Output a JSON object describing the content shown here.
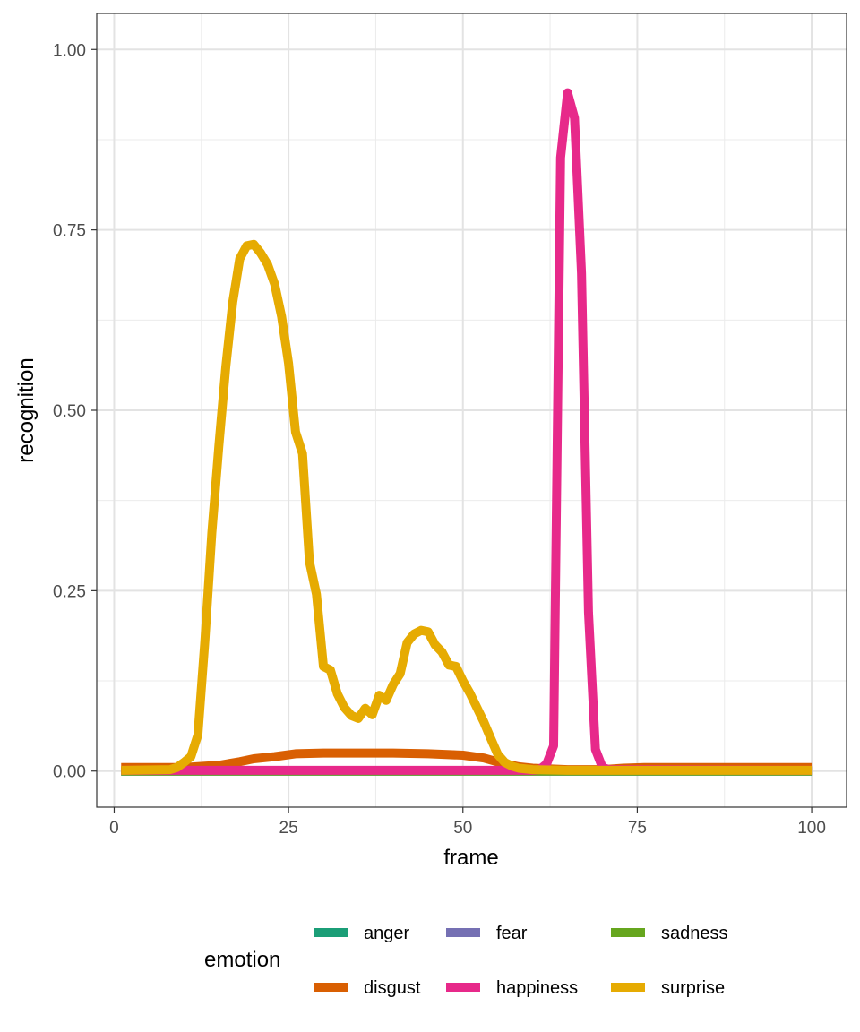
{
  "chart_data": {
    "type": "line",
    "title": "",
    "xlabel": "frame",
    "ylabel": "recognition",
    "xlim": [
      -2.5,
      105
    ],
    "ylim": [
      -0.05,
      1.05
    ],
    "x_ticks": [
      0,
      25,
      50,
      75,
      100
    ],
    "x_tick_labels": [
      "0",
      "25",
      "50",
      "75",
      "100"
    ],
    "y_ticks": [
      0,
      0.25,
      0.5,
      0.75,
      1.0
    ],
    "y_tick_labels": [
      "0.00",
      "0.25",
      "0.50",
      "0.75",
      "1.00"
    ],
    "grid": true,
    "legend": {
      "title": "emotion",
      "placement": "bottom"
    },
    "series": [
      {
        "name": "anger",
        "color": "#1B9E77",
        "points": [
          [
            1,
            0.0
          ],
          [
            100,
            0.0
          ]
        ]
      },
      {
        "name": "fear",
        "color": "#7570B3",
        "points": [
          [
            1,
            0.0
          ],
          [
            100,
            0.0
          ]
        ]
      },
      {
        "name": "sadness",
        "color": "#66A61E",
        "points": [
          [
            1,
            0.0
          ],
          [
            100,
            0.0
          ]
        ]
      },
      {
        "name": "disgust",
        "color": "#D95F02",
        "points": [
          [
            1,
            0.005
          ],
          [
            5,
            0.005
          ],
          [
            10,
            0.005
          ],
          [
            15,
            0.008
          ],
          [
            18,
            0.013
          ],
          [
            20,
            0.017
          ],
          [
            23,
            0.02
          ],
          [
            26,
            0.024
          ],
          [
            30,
            0.025
          ],
          [
            35,
            0.025
          ],
          [
            40,
            0.025
          ],
          [
            45,
            0.024
          ],
          [
            50,
            0.022
          ],
          [
            53,
            0.018
          ],
          [
            56,
            0.01
          ],
          [
            58,
            0.006
          ],
          [
            60,
            0.004
          ],
          [
            65,
            0.002
          ],
          [
            70,
            0.002
          ],
          [
            73,
            0.004
          ],
          [
            76,
            0.005
          ],
          [
            80,
            0.005
          ],
          [
            100,
            0.005
          ]
        ]
      },
      {
        "name": "happiness",
        "color": "#E7298A",
        "points": [
          [
            1,
            0.001
          ],
          [
            60,
            0.001
          ],
          [
            61,
            0.002
          ],
          [
            62,
            0.01
          ],
          [
            63,
            0.035
          ],
          [
            64,
            0.85
          ],
          [
            65,
            0.94
          ],
          [
            66,
            0.905
          ],
          [
            67,
            0.69
          ],
          [
            68,
            0.22
          ],
          [
            69,
            0.03
          ],
          [
            70,
            0.005
          ],
          [
            71,
            0.002
          ],
          [
            100,
            0.001
          ]
        ]
      },
      {
        "name": "surprise",
        "color": "#E6AB02",
        "points": [
          [
            1,
            0.001
          ],
          [
            8,
            0.002
          ],
          [
            9,
            0.005
          ],
          [
            10,
            0.012
          ],
          [
            11,
            0.02
          ],
          [
            12,
            0.05
          ],
          [
            13,
            0.18
          ],
          [
            14,
            0.33
          ],
          [
            15,
            0.45
          ],
          [
            16,
            0.56
          ],
          [
            17,
            0.65
          ],
          [
            18,
            0.71
          ],
          [
            19,
            0.728
          ],
          [
            20,
            0.73
          ],
          [
            21,
            0.718
          ],
          [
            22,
            0.702
          ],
          [
            23,
            0.675
          ],
          [
            24,
            0.63
          ],
          [
            25,
            0.565
          ],
          [
            26,
            0.47
          ],
          [
            27,
            0.44
          ],
          [
            28,
            0.29
          ],
          [
            29,
            0.245
          ],
          [
            30,
            0.145
          ],
          [
            31,
            0.14
          ],
          [
            32,
            0.107
          ],
          [
            33,
            0.088
          ],
          [
            34,
            0.077
          ],
          [
            35,
            0.073
          ],
          [
            36,
            0.087
          ],
          [
            37,
            0.078
          ],
          [
            38,
            0.105
          ],
          [
            39,
            0.098
          ],
          [
            40,
            0.12
          ],
          [
            41,
            0.135
          ],
          [
            42,
            0.178
          ],
          [
            43,
            0.19
          ],
          [
            44,
            0.195
          ],
          [
            45,
            0.193
          ],
          [
            46,
            0.175
          ],
          [
            47,
            0.165
          ],
          [
            48,
            0.147
          ],
          [
            49,
            0.145
          ],
          [
            50,
            0.125
          ],
          [
            51,
            0.108
          ],
          [
            52,
            0.088
          ],
          [
            53,
            0.068
          ],
          [
            54,
            0.045
          ],
          [
            55,
            0.023
          ],
          [
            56,
            0.012
          ],
          [
            57,
            0.007
          ],
          [
            58,
            0.004
          ],
          [
            60,
            0.002
          ],
          [
            65,
            0.001
          ],
          [
            100,
            0.001
          ]
        ]
      }
    ],
    "legend_items": [
      {
        "name": "anger",
        "color": "#1B9E77"
      },
      {
        "name": "fear",
        "color": "#7570B3"
      },
      {
        "name": "sadness",
        "color": "#66A61E"
      },
      {
        "name": "disgust",
        "color": "#D95F02"
      },
      {
        "name": "happiness",
        "color": "#E7298A"
      },
      {
        "name": "surprise",
        "color": "#E6AB02"
      }
    ]
  }
}
